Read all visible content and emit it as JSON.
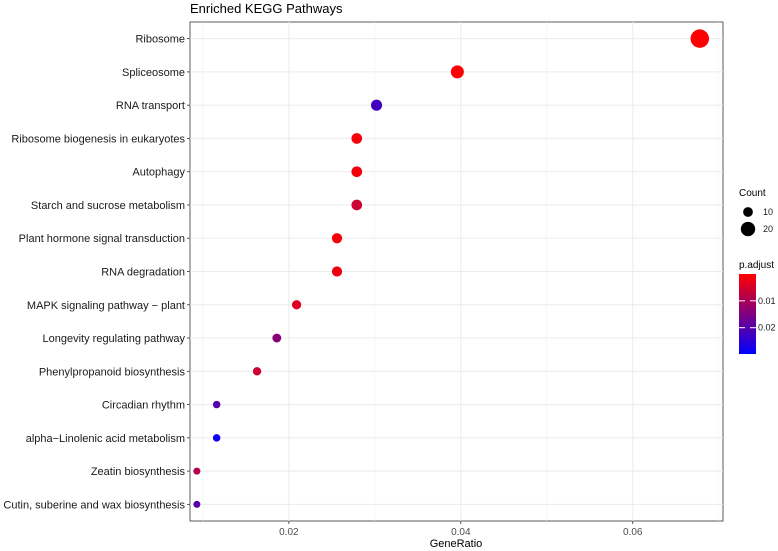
{
  "chart_data": {
    "type": "scatter",
    "title": "Enriched KEGG Pathways",
    "xlabel": "GeneRatio",
    "ylabel": "",
    "xlim": [
      0.0085,
      0.0705
    ],
    "xticks": [
      0.02,
      0.04,
      0.06
    ],
    "xtick_labels": [
      "0.02",
      "0.04",
      "0.06"
    ],
    "grid": true,
    "categories": [
      "Ribosome",
      "Spliceosome",
      "RNA transport",
      "Ribosome biogenesis in eukaryotes",
      "Autophagy",
      "Starch and sucrose metabolism",
      "Plant hormone signal transduction",
      "RNA degradation",
      "MAPK signaling pathway − plant",
      "Longevity regulating pathway",
      "Phenylpropanoid biosynthesis",
      "Circadian rhythm",
      "alpha−Linolenic acid metabolism",
      "Zeatin biosynthesis",
      "Cutin, suberine and wax biosynthesis"
    ],
    "points": [
      {
        "category": "Ribosome",
        "x": 0.0678,
        "count": 29,
        "p_adjust": 0.0003
      },
      {
        "category": "Spliceosome",
        "x": 0.0396,
        "count": 17,
        "p_adjust": 0.0004
      },
      {
        "category": "RNA transport",
        "x": 0.0302,
        "count": 13,
        "p_adjust": 0.022
      },
      {
        "category": "Ribosome biogenesis in eukaryotes",
        "x": 0.0279,
        "count": 12,
        "p_adjust": 0.001
      },
      {
        "category": "Autophagy",
        "x": 0.0279,
        "count": 12,
        "p_adjust": 0.0012
      },
      {
        "category": "Starch and sucrose metabolism",
        "x": 0.0279,
        "count": 12,
        "p_adjust": 0.006
      },
      {
        "category": "Plant hormone signal transduction",
        "x": 0.0256,
        "count": 11,
        "p_adjust": 0.001
      },
      {
        "category": "RNA degradation",
        "x": 0.0256,
        "count": 11,
        "p_adjust": 0.002
      },
      {
        "category": "MAPK signaling pathway − plant",
        "x": 0.0209,
        "count": 9,
        "p_adjust": 0.004
      },
      {
        "category": "Longevity regulating pathway",
        "x": 0.0186,
        "count": 8,
        "p_adjust": 0.014
      },
      {
        "category": "Phenylpropanoid biosynthesis",
        "x": 0.0163,
        "count": 7,
        "p_adjust": 0.006
      },
      {
        "category": "Circadian rhythm",
        "x": 0.0116,
        "count": 5,
        "p_adjust": 0.02
      },
      {
        "category": "alpha−Linolenic acid metabolism",
        "x": 0.0116,
        "count": 5,
        "p_adjust": 0.028
      },
      {
        "category": "Zeatin biosynthesis",
        "x": 0.0093,
        "count": 4,
        "p_adjust": 0.009
      },
      {
        "category": "Cutin, suberine and wax biosynthesis",
        "x": 0.0093,
        "count": 4,
        "p_adjust": 0.02
      }
    ],
    "size_legend": {
      "title": "Count",
      "values": [
        10,
        20
      ],
      "labels": [
        "10",
        "20"
      ]
    },
    "color_legend": {
      "title": "p.adjust",
      "range": [
        0,
        0.0298
      ],
      "ticks": [
        0.01,
        0.02
      ],
      "tick_labels": [
        "0.01",
        "0.02"
      ],
      "low_color": "#ff0000",
      "high_color": "#0000ff"
    },
    "legend_position": "right",
    "panel_background": "#ffffff",
    "grid_color": "#ebebeb"
  }
}
